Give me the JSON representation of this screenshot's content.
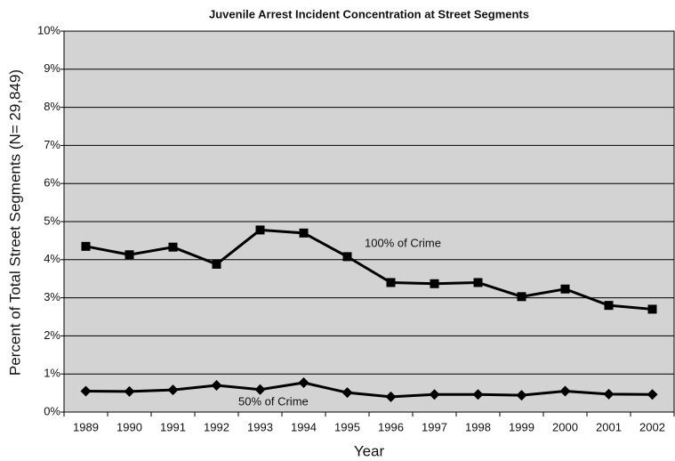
{
  "chart_data": {
    "type": "line",
    "title": "Juvenile Arrest Incident Concentration at Street Segments",
    "x_label": "Year",
    "y_label": "Percent of Total Street Segments (N= 29,849)",
    "categories": [
      "1989",
      "1990",
      "1991",
      "1992",
      "1993",
      "1994",
      "1995",
      "1996",
      "1997",
      "1998",
      "1999",
      "2000",
      "2001",
      "2002"
    ],
    "series": [
      {
        "name": "100% of Crime",
        "color": "#000000",
        "marker": "square",
        "values": [
          4.35,
          4.13,
          4.33,
          3.88,
          4.78,
          4.7,
          4.08,
          3.4,
          3.37,
          3.4,
          3.03,
          3.23,
          2.8,
          2.7
        ]
      },
      {
        "name": "50% of Crime",
        "color": "#000000",
        "marker": "diamond",
        "values": [
          0.55,
          0.54,
          0.58,
          0.7,
          0.59,
          0.77,
          0.51,
          0.4,
          0.46,
          0.46,
          0.44,
          0.55,
          0.47,
          0.46
        ]
      }
    ],
    "ylim": [
      0,
      10
    ],
    "yticks": [
      {
        "value": 0,
        "label": "0%"
      },
      {
        "value": 1,
        "label": "1%"
      },
      {
        "value": 2,
        "label": "2%"
      },
      {
        "value": 3,
        "label": "3%"
      },
      {
        "value": 4,
        "label": "4%"
      },
      {
        "value": 5,
        "label": "5%"
      },
      {
        "value": 6,
        "label": "6%"
      },
      {
        "value": 7,
        "label": "7%"
      },
      {
        "value": 8,
        "label": "8%"
      },
      {
        "value": 9,
        "label": "9%"
      },
      {
        "value": 10,
        "label": "10%"
      }
    ],
    "grid": true,
    "plot_background": "#d3d3d3"
  }
}
